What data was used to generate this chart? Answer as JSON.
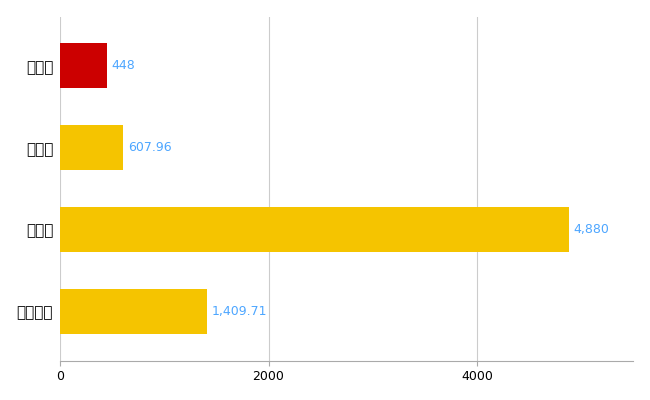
{
  "categories": [
    "藍住町",
    "県平均",
    "県最大",
    "全国平均"
  ],
  "values": [
    448,
    607.96,
    4880,
    1409.71
  ],
  "bar_colors": [
    "#cc0000",
    "#f5c400",
    "#f5c400",
    "#f5c400"
  ],
  "value_labels": [
    "448",
    "607.96",
    "4,880",
    "1,409.71"
  ],
  "label_color": "#4da6ff",
  "background_color": "#ffffff",
  "grid_color": "#cccccc",
  "xlim": [
    0,
    5500
  ],
  "bar_height": 0.55,
  "figsize": [
    6.5,
    4.0
  ],
  "dpi": 100
}
